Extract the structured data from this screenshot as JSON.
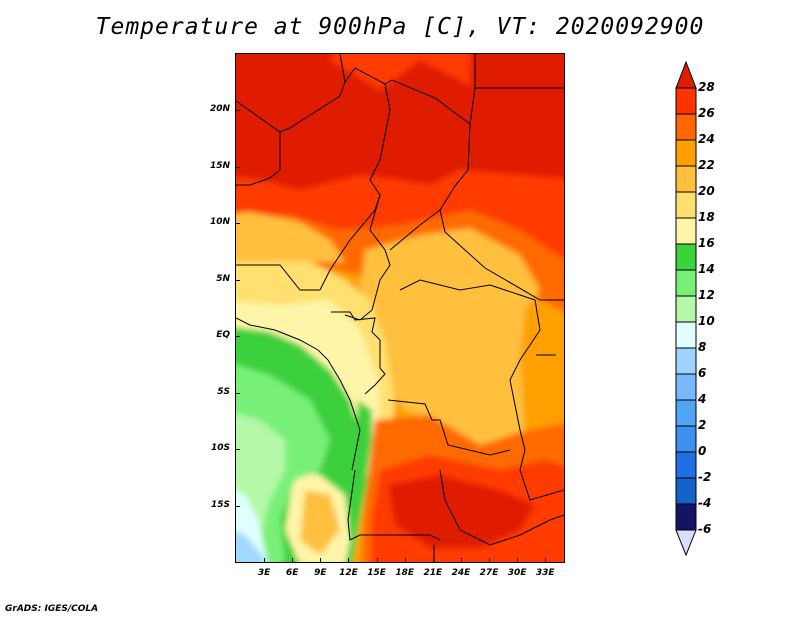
{
  "title": "Temperature at 900hPa [C], VT: 2020092900",
  "footer": "GrADS: IGES/COLA",
  "map": {
    "variable": "Temperature at 900hPa",
    "units": "C",
    "lon_range": [
      0,
      35
    ],
    "lat_range": [
      -20,
      25
    ],
    "y_ticks": [
      {
        "label": "20N",
        "lat": 20
      },
      {
        "label": "15N",
        "lat": 15
      },
      {
        "label": "10N",
        "lat": 10
      },
      {
        "label": "5N",
        "lat": 5
      },
      {
        "label": "EQ",
        "lat": 0
      },
      {
        "label": "5S",
        "lat": -5
      },
      {
        "label": "10S",
        "lat": -10
      },
      {
        "label": "15S",
        "lat": -15
      }
    ],
    "x_ticks": [
      {
        "label": "3E",
        "lon": 3
      },
      {
        "label": "6E",
        "lon": 6
      },
      {
        "label": "9E",
        "lon": 9
      },
      {
        "label": "12E",
        "lon": 12
      },
      {
        "label": "15E",
        "lon": 15
      },
      {
        "label": "18E",
        "lon": 18
      },
      {
        "label": "21E",
        "lon": 21
      },
      {
        "label": "24E",
        "lon": 24
      },
      {
        "label": "27E",
        "lon": 27
      },
      {
        "label": "30E",
        "lon": 30
      },
      {
        "label": "33E",
        "lon": 33
      }
    ]
  },
  "colorbar": {
    "labels": [
      "28",
      "26",
      "24",
      "22",
      "20",
      "18",
      "16",
      "14",
      "12",
      "10",
      "8",
      "6",
      "4",
      "2",
      "0",
      "-2",
      "-4",
      "-6"
    ],
    "top_arrow_color": "#d91f00",
    "bottom_arrow_color": "#dcdcff",
    "colors": [
      "#ff3300",
      "#ff6600",
      "#ffa000",
      "#ffbf3c",
      "#ffdf6e",
      "#fff5aa",
      "#3cd23c",
      "#78f078",
      "#b4f8a8",
      "#e0ffff",
      "#a0d4ff",
      "#78b8ff",
      "#50a5f5",
      "#3c91f0",
      "#1e6ee6",
      "#1462c8",
      "#141464"
    ]
  }
}
